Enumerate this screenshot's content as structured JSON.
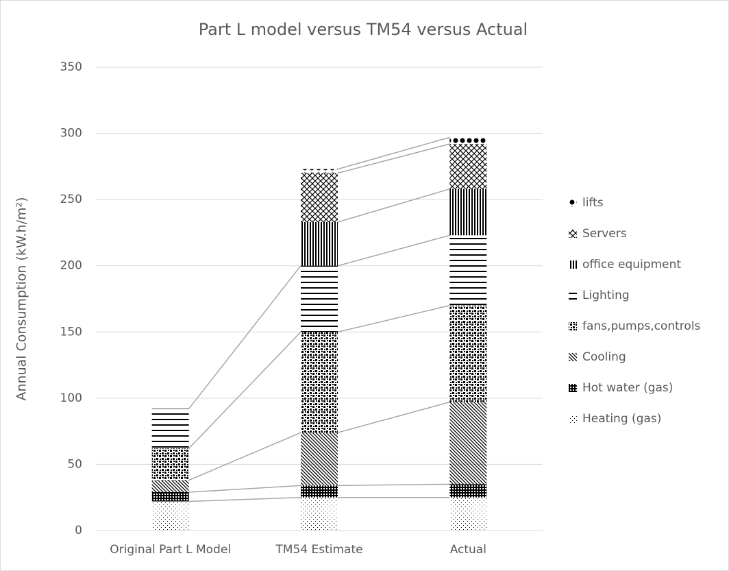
{
  "chart_data": {
    "type": "bar",
    "stacked": true,
    "title": "Part L model versus TM54 versus Actual",
    "y_label": "Annual Consumption (kW.h/m²)",
    "categories": [
      "Original Part L Model",
      "TM54 Estimate",
      "Actual"
    ],
    "series": [
      {
        "name": "Heating (gas)",
        "color": "#000000",
        "values": [
          22,
          25,
          25
        ]
      },
      {
        "name": "Hot water (gas)",
        "color": "#000000",
        "values": [
          7,
          9,
          10
        ]
      },
      {
        "name": "Cooling",
        "color": "#000000",
        "values": [
          9,
          40,
          62
        ]
      },
      {
        "name": "fans,pumps,controls",
        "color": "#000000",
        "values": [
          24,
          76,
          73
        ]
      },
      {
        "name": "Lighting",
        "color": "#000000",
        "values": [
          30,
          50,
          53
        ]
      },
      {
        "name": "office equipment",
        "color": "#000000",
        "values": [
          0,
          33,
          35
        ]
      },
      {
        "name": "Servers",
        "color": "#000000",
        "values": [
          0,
          37,
          34
        ]
      },
      {
        "name": "lifts",
        "color": "#000000",
        "values": [
          0,
          3,
          5
        ]
      }
    ],
    "ylim": [
      0,
      350
    ],
    "yticks": [
      0,
      50,
      100,
      150,
      200,
      250,
      300,
      350
    ],
    "grid": true,
    "legend": "right"
  }
}
